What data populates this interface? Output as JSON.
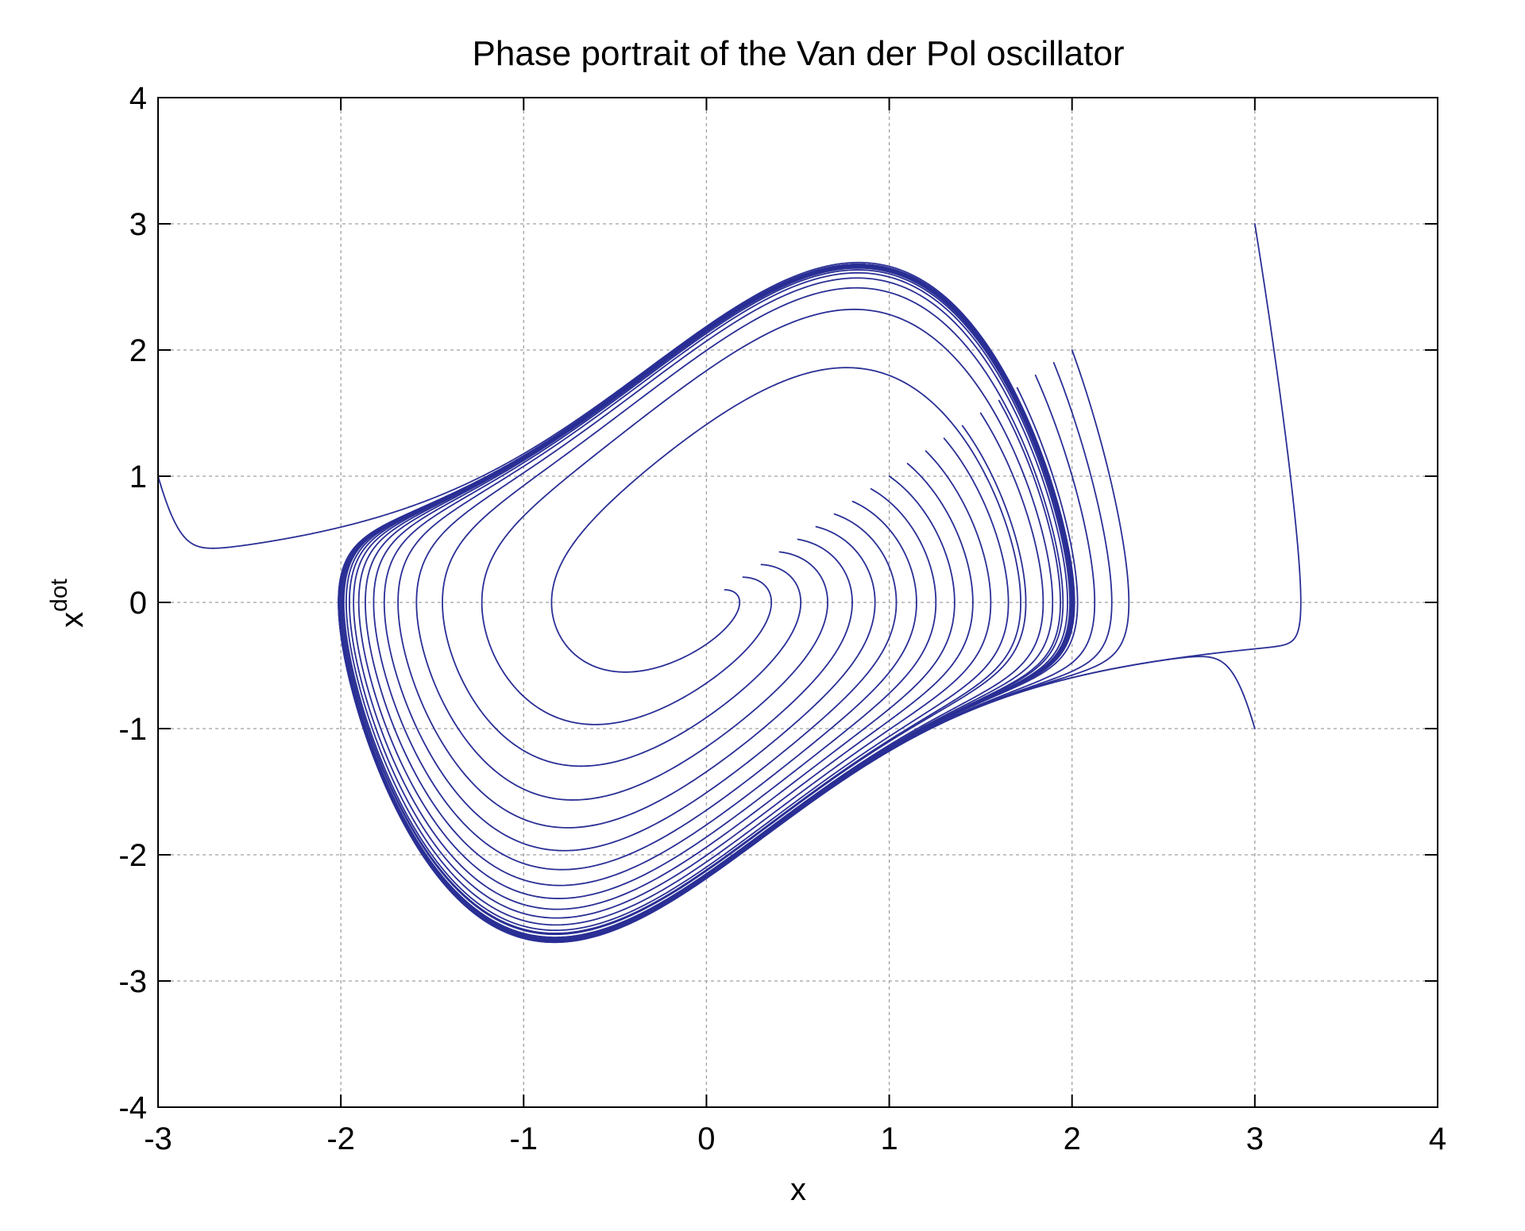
{
  "chart_data": {
    "type": "line",
    "title": "Phase portrait of the Van der Pol oscillator",
    "xlabel": "x",
    "ylabel_base": "x",
    "ylabel_sup": "dot",
    "xlim": [
      -3,
      4
    ],
    "ylim": [
      -4,
      4
    ],
    "xticks": [
      -3,
      -2,
      -1,
      0,
      1,
      2,
      3,
      4
    ],
    "yticks": [
      -4,
      -3,
      -2,
      -1,
      0,
      1,
      2,
      3,
      4
    ],
    "grid": true,
    "line_color": "#2a2f95",
    "model": {
      "equation": "Van der Pol",
      "mu": 1.0
    },
    "initial_conditions": [
      [
        -3,
        1
      ],
      [
        3,
        3
      ],
      [
        3,
        -1
      ],
      [
        0.1,
        0.1
      ],
      [
        0.2,
        0.2
      ],
      [
        0.3,
        0.3
      ],
      [
        0.4,
        0.4
      ],
      [
        0.5,
        0.5
      ],
      [
        0.6,
        0.6
      ],
      [
        0.7,
        0.7
      ],
      [
        0.8,
        0.8
      ],
      [
        0.9,
        0.9
      ],
      [
        1.0,
        1.0
      ],
      [
        1.1,
        1.1
      ],
      [
        1.2,
        1.2
      ],
      [
        1.3,
        1.3
      ],
      [
        1.4,
        1.4
      ],
      [
        1.5,
        1.5
      ],
      [
        1.6,
        1.6
      ],
      [
        1.7,
        1.7
      ],
      [
        1.8,
        1.8
      ],
      [
        1.9,
        1.9
      ],
      [
        2.0,
        2.0
      ]
    ]
  }
}
